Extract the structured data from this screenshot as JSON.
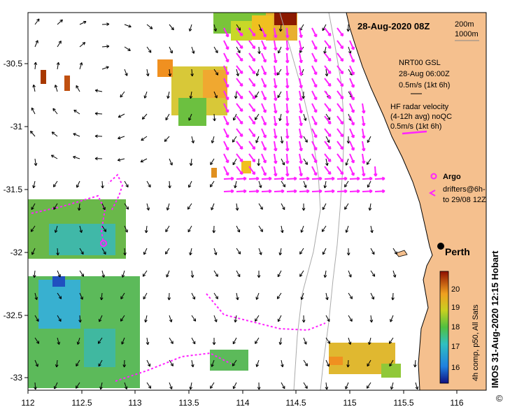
{
  "map": {
    "title": "28-Aug-2020 08Z",
    "scale_bar": [
      "200m",
      "1000m"
    ],
    "credit": "IMOS 31-Aug-2020 12:15 Hobart",
    "copyright_symbol": "©",
    "city": "Perth",
    "lon_ticks": [
      "112",
      "112.5",
      "113",
      "113.5",
      "114",
      "114.5",
      "115",
      "115.5",
      "116"
    ],
    "lat_ticks": [
      "-30.5",
      "-31",
      "-31.5",
      "-32",
      "-32.5",
      "-33"
    ],
    "colors": {
      "land": "#f5c08e",
      "radar": "#ff22ff",
      "bathy": "#aaaaaa"
    }
  },
  "legend": {
    "gsl_lines": [
      "NRT00 GSL",
      "28-Aug 06:00Z",
      "0.5m/s (1kt 6h)"
    ],
    "hf_lines": [
      "HF radar velocity",
      "(4-12h avg) noQC",
      "0.5m/s (1kt 6h)"
    ],
    "argo": "Argo",
    "drifters": [
      "drifters@6h-",
      "to 29/08 12Z"
    ]
  },
  "colorbar": {
    "label": "4h comp, p50, All Sats",
    "ticks": [
      "20",
      "19",
      "18",
      "17",
      "16"
    ]
  }
}
